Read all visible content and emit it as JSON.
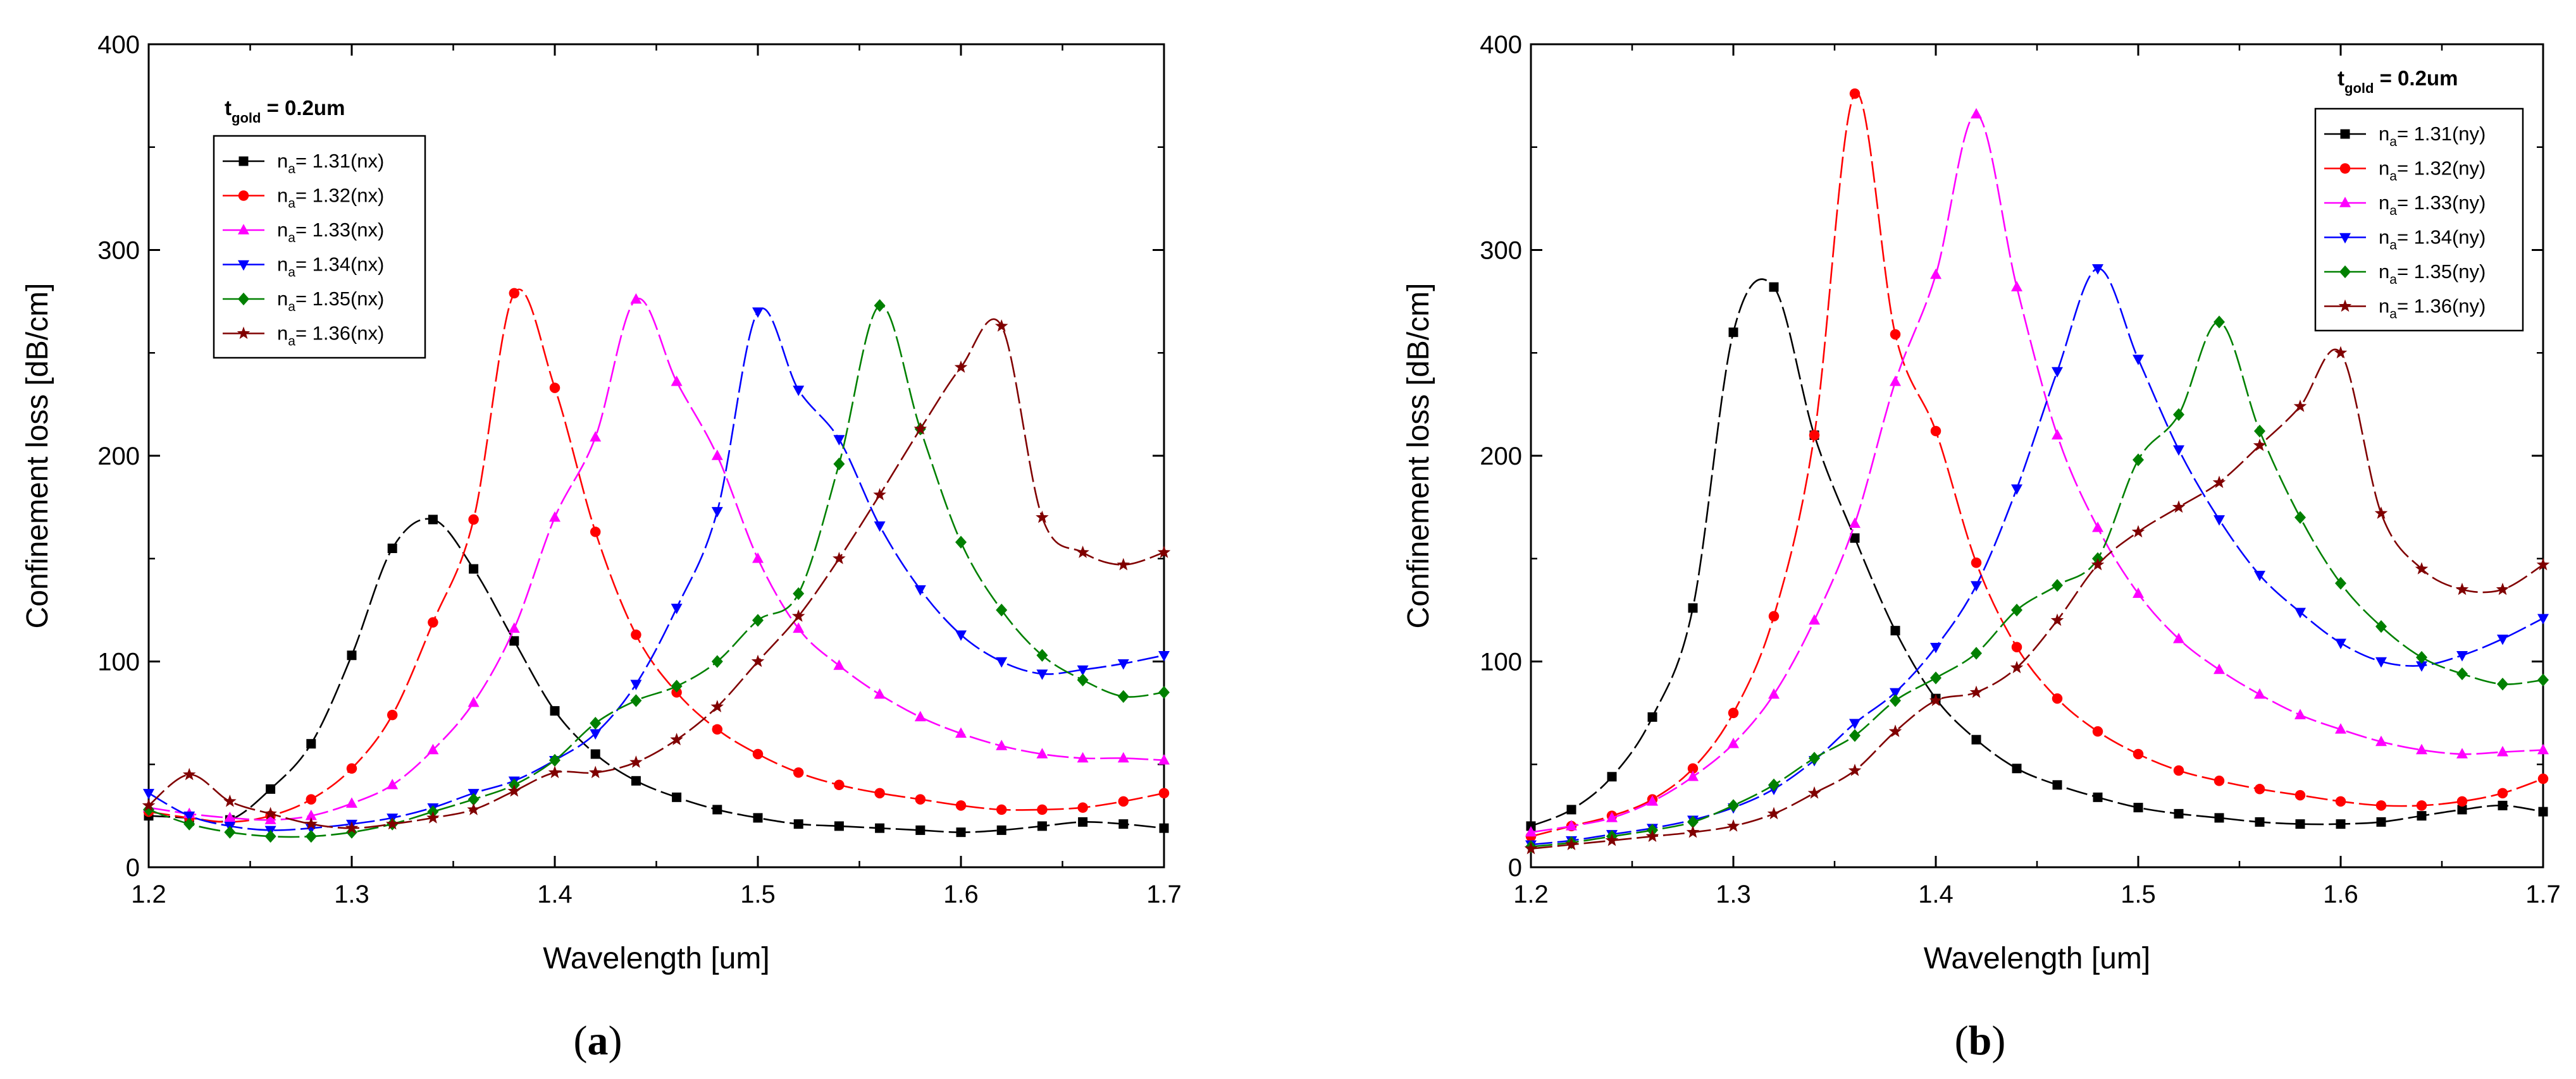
{
  "figure": {
    "panels": [
      {
        "caption_letter": "a"
      },
      {
        "caption_letter": "b"
      }
    ]
  },
  "chart_data": [
    {
      "type": "line",
      "panel": "a",
      "xlabel": "Wavelength [um]",
      "ylabel": "Confinement loss [dB/cm]",
      "xlim": [
        1.2,
        1.7
      ],
      "ylim": [
        0,
        400
      ],
      "xticks": [
        "1.2",
        "1.3",
        "1.4",
        "1.5",
        "1.6",
        "1.7"
      ],
      "yticks": [
        "0",
        "100",
        "200",
        "300",
        "400"
      ],
      "xtick_values": [
        1.2,
        1.3,
        1.4,
        1.5,
        1.6,
        1.7
      ],
      "ytick_values": [
        0,
        100,
        200,
        300,
        400
      ],
      "annotation": {
        "main": "t",
        "sub": "gold",
        "rest": " = 0.2um"
      },
      "legend_position": "top-left",
      "series": [
        {
          "name": "n",
          "sub": "a",
          "rest": "= 1.31(nx)",
          "color": "#000000",
          "marker": "square",
          "x": [
            1.2,
            1.22,
            1.24,
            1.26,
            1.28,
            1.3,
            1.32,
            1.34,
            1.36,
            1.38,
            1.4,
            1.42,
            1.44,
            1.46,
            1.48,
            1.5,
            1.52,
            1.54,
            1.56,
            1.58,
            1.6,
            1.62,
            1.64,
            1.66,
            1.68,
            1.7
          ],
          "y": [
            25,
            24,
            23,
            38,
            60,
            103,
            155,
            169,
            145,
            110,
            76,
            55,
            42,
            34,
            28,
            24,
            21,
            20,
            19,
            18,
            17,
            18,
            20,
            22,
            21,
            19
          ]
        },
        {
          "name": "n",
          "sub": "a",
          "rest": "= 1.32(nx)",
          "color": "#ff0000",
          "marker": "circle",
          "x": [
            1.2,
            1.22,
            1.24,
            1.26,
            1.28,
            1.3,
            1.32,
            1.34,
            1.36,
            1.38,
            1.4,
            1.42,
            1.44,
            1.46,
            1.48,
            1.5,
            1.52,
            1.54,
            1.56,
            1.58,
            1.6,
            1.62,
            1.64,
            1.66,
            1.68,
            1.7
          ],
          "y": [
            27,
            24,
            22,
            25,
            33,
            48,
            74,
            119,
            169,
            279,
            233,
            163,
            113,
            85,
            67,
            55,
            46,
            40,
            36,
            33,
            30,
            28,
            28,
            29,
            32,
            36
          ]
        },
        {
          "name": "n",
          "sub": "a",
          "rest": "= 1.33(nx)",
          "color": "#ff00ff",
          "marker": "triangle-up",
          "x": [
            1.2,
            1.22,
            1.24,
            1.26,
            1.28,
            1.3,
            1.32,
            1.34,
            1.36,
            1.38,
            1.4,
            1.42,
            1.44,
            1.46,
            1.48,
            1.5,
            1.52,
            1.54,
            1.56,
            1.58,
            1.6,
            1.62,
            1.64,
            1.66,
            1.68,
            1.7
          ],
          "y": [
            29,
            26,
            24,
            23,
            25,
            31,
            40,
            57,
            80,
            116,
            170,
            209,
            276,
            236,
            200,
            150,
            116,
            98,
            84,
            73,
            65,
            59,
            55,
            53,
            53,
            52
          ]
        },
        {
          "name": "n",
          "sub": "a",
          "rest": "= 1.34(nx)",
          "color": "#0000ff",
          "marker": "triangle-down",
          "x": [
            1.2,
            1.22,
            1.24,
            1.26,
            1.28,
            1.3,
            1.32,
            1.34,
            1.36,
            1.38,
            1.4,
            1.42,
            1.44,
            1.46,
            1.48,
            1.5,
            1.52,
            1.54,
            1.56,
            1.58,
            1.6,
            1.62,
            1.64,
            1.66,
            1.68,
            1.7
          ],
          "y": [
            36,
            25,
            20,
            18,
            19,
            21,
            24,
            29,
            36,
            42,
            52,
            65,
            89,
            126,
            173,
            270,
            232,
            208,
            166,
            135,
            113,
            100,
            94,
            96,
            99,
            103
          ]
        },
        {
          "name": "n",
          "sub": "a",
          "rest": "= 1.35(nx)",
          "color": "#008000",
          "marker": "diamond",
          "x": [
            1.2,
            1.22,
            1.24,
            1.26,
            1.28,
            1.3,
            1.32,
            1.34,
            1.36,
            1.38,
            1.4,
            1.42,
            1.44,
            1.46,
            1.48,
            1.5,
            1.52,
            1.54,
            1.56,
            1.58,
            1.6,
            1.62,
            1.64,
            1.66,
            1.68,
            1.7
          ],
          "y": [
            28,
            21,
            17,
            15,
            15,
            17,
            21,
            27,
            33,
            40,
            52,
            70,
            81,
            88,
            100,
            120,
            133,
            196,
            273,
            213,
            158,
            125,
            103,
            91,
            83,
            85
          ]
        },
        {
          "name": "n",
          "sub": "a",
          "rest": "= 1.36(nx)",
          "color": "#800000",
          "marker": "star",
          "x": [
            1.2,
            1.22,
            1.24,
            1.26,
            1.28,
            1.3,
            1.32,
            1.34,
            1.36,
            1.38,
            1.4,
            1.42,
            1.44,
            1.46,
            1.48,
            1.5,
            1.52,
            1.54,
            1.56,
            1.58,
            1.6,
            1.62,
            1.64,
            1.66,
            1.68,
            1.7
          ],
          "y": [
            30,
            45,
            32,
            26,
            21,
            19,
            21,
            24,
            28,
            37,
            46,
            46,
            51,
            62,
            78,
            100,
            122,
            150,
            181,
            213,
            243,
            263,
            170,
            153,
            147,
            153
          ]
        }
      ]
    },
    {
      "type": "line",
      "panel": "b",
      "xlabel": "Wavelength [um]",
      "ylabel": "Confinement loss [dB/cm]",
      "xlim": [
        1.2,
        1.7
      ],
      "ylim": [
        0,
        400
      ],
      "xticks": [
        "1.2",
        "1.3",
        "1.4",
        "1.5",
        "1.6",
        "1.7"
      ],
      "yticks": [
        "0",
        "100",
        "200",
        "300",
        "400"
      ],
      "xtick_values": [
        1.2,
        1.3,
        1.4,
        1.5,
        1.6,
        1.7
      ],
      "ytick_values": [
        0,
        100,
        200,
        300,
        400
      ],
      "annotation": {
        "main": "t",
        "sub": "gold",
        "rest": " = 0.2um"
      },
      "legend_position": "top-right",
      "series": [
        {
          "name": "n",
          "sub": "a",
          "rest": "= 1.31(ny)",
          "color": "#000000",
          "marker": "square",
          "x": [
            1.2,
            1.22,
            1.24,
            1.26,
            1.28,
            1.3,
            1.32,
            1.34,
            1.36,
            1.38,
            1.4,
            1.42,
            1.44,
            1.46,
            1.48,
            1.5,
            1.52,
            1.54,
            1.56,
            1.58,
            1.6,
            1.62,
            1.64,
            1.66,
            1.68,
            1.7
          ],
          "y": [
            20,
            28,
            44,
            73,
            126,
            260,
            282,
            210,
            160,
            115,
            82,
            62,
            48,
            40,
            34,
            29,
            26,
            24,
            22,
            21,
            21,
            22,
            25,
            28,
            30,
            27
          ]
        },
        {
          "name": "n",
          "sub": "a",
          "rest": "= 1.32(ny)",
          "color": "#ff0000",
          "marker": "circle",
          "x": [
            1.2,
            1.22,
            1.24,
            1.26,
            1.28,
            1.3,
            1.32,
            1.34,
            1.36,
            1.38,
            1.4,
            1.42,
            1.44,
            1.46,
            1.48,
            1.5,
            1.52,
            1.54,
            1.56,
            1.58,
            1.6,
            1.62,
            1.64,
            1.66,
            1.68,
            1.7
          ],
          "y": [
            15,
            20,
            25,
            33,
            48,
            75,
            122,
            210,
            376,
            259,
            212,
            148,
            107,
            82,
            66,
            55,
            47,
            42,
            38,
            35,
            32,
            30,
            30,
            32,
            36,
            43
          ]
        },
        {
          "name": "n",
          "sub": "a",
          "rest": "= 1.33(ny)",
          "color": "#ff00ff",
          "marker": "triangle-up",
          "x": [
            1.2,
            1.22,
            1.24,
            1.26,
            1.28,
            1.3,
            1.32,
            1.34,
            1.36,
            1.38,
            1.4,
            1.42,
            1.44,
            1.46,
            1.48,
            1.5,
            1.52,
            1.54,
            1.56,
            1.58,
            1.6,
            1.62,
            1.64,
            1.66,
            1.68,
            1.7
          ],
          "y": [
            17,
            20,
            24,
            32,
            44,
            60,
            84,
            120,
            167,
            236,
            288,
            366,
            282,
            210,
            165,
            133,
            111,
            96,
            84,
            74,
            67,
            61,
            57,
            55,
            56,
            57
          ]
        },
        {
          "name": "n",
          "sub": "a",
          "rest": "= 1.34(ny)",
          "color": "#0000ff",
          "marker": "triangle-down",
          "x": [
            1.2,
            1.22,
            1.24,
            1.26,
            1.28,
            1.3,
            1.32,
            1.34,
            1.36,
            1.38,
            1.4,
            1.42,
            1.44,
            1.46,
            1.48,
            1.5,
            1.52,
            1.54,
            1.56,
            1.58,
            1.6,
            1.62,
            1.64,
            1.66,
            1.68,
            1.7
          ],
          "y": [
            11,
            13,
            16,
            19,
            23,
            29,
            38,
            52,
            70,
            85,
            107,
            137,
            184,
            241,
            291,
            247,
            203,
            169,
            142,
            124,
            109,
            100,
            98,
            103,
            111,
            121
          ]
        },
        {
          "name": "n",
          "sub": "a",
          "rest": "= 1.35(ny)",
          "color": "#008000",
          "marker": "diamond",
          "x": [
            1.2,
            1.22,
            1.24,
            1.26,
            1.28,
            1.3,
            1.32,
            1.34,
            1.36,
            1.38,
            1.4,
            1.42,
            1.44,
            1.46,
            1.48,
            1.5,
            1.52,
            1.54,
            1.56,
            1.58,
            1.6,
            1.62,
            1.64,
            1.66,
            1.68,
            1.7
          ],
          "y": [
            10,
            12,
            15,
            18,
            22,
            30,
            40,
            53,
            64,
            81,
            92,
            104,
            125,
            137,
            150,
            198,
            220,
            265,
            212,
            170,
            138,
            117,
            102,
            94,
            89,
            91
          ]
        },
        {
          "name": "n",
          "sub": "a",
          "rest": "= 1.36(ny)",
          "color": "#800000",
          "marker": "star",
          "x": [
            1.2,
            1.22,
            1.24,
            1.26,
            1.28,
            1.3,
            1.32,
            1.34,
            1.36,
            1.38,
            1.4,
            1.42,
            1.44,
            1.46,
            1.48,
            1.5,
            1.52,
            1.54,
            1.56,
            1.58,
            1.6,
            1.62,
            1.64,
            1.66,
            1.68,
            1.7
          ],
          "y": [
            9,
            11,
            13,
            15,
            17,
            20,
            26,
            36,
            47,
            66,
            81,
            85,
            97,
            120,
            147,
            163,
            175,
            187,
            205,
            224,
            250,
            172,
            145,
            135,
            135,
            147
          ]
        }
      ]
    }
  ]
}
